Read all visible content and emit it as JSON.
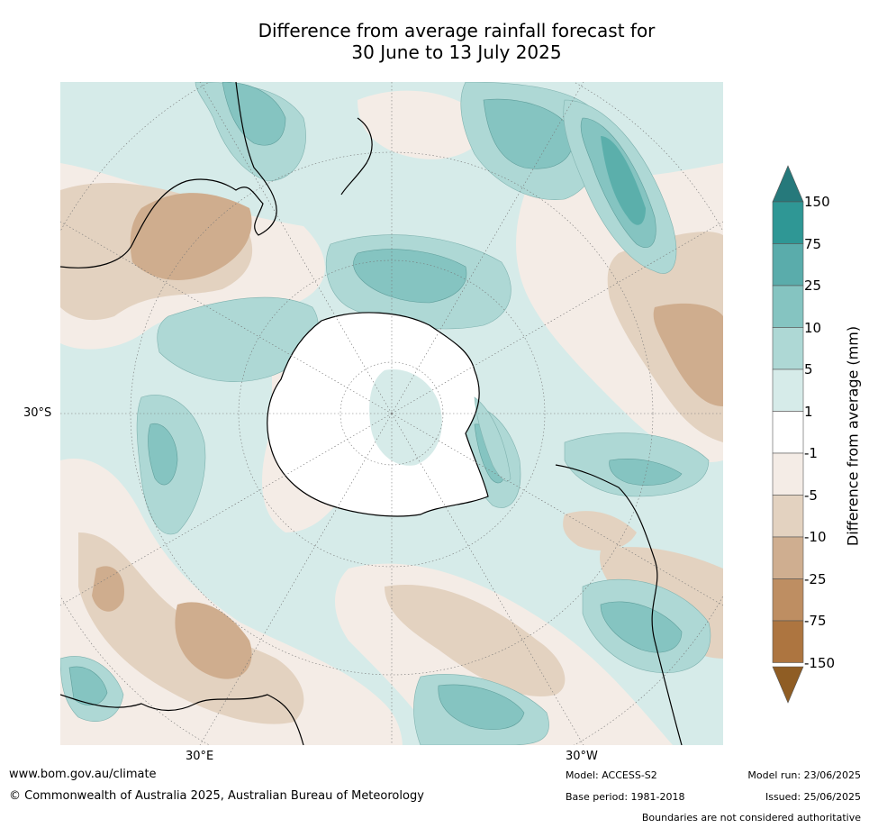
{
  "title": {
    "line1": "Difference from average rainfall forecast for",
    "line2": "30 June to 13 July 2025"
  },
  "map": {
    "projection": "south-polar stereographic",
    "lon_labels": [
      "30°E",
      "30°W"
    ],
    "lat_labels": [
      "30°S"
    ],
    "colors": {
      "land_neutral": "#ffffff",
      "dry_1": "#f4ece6",
      "dry_5": "#e3d2c0",
      "dry_10": "#cfad8e",
      "wet_1": "#d6ebe9",
      "wet_5": "#aed8d5",
      "wet_10": "#85c4c1",
      "wet_25": "#5bafab"
    }
  },
  "colorbar": {
    "label": "Difference from average (mm)",
    "ticks": [
      "150",
      "75",
      "25",
      "10",
      "5",
      "1",
      "-1",
      "-5",
      "-10",
      "-25",
      "-75",
      "-150"
    ],
    "colors": [
      "#2f9795",
      "#5aacab",
      "#85c4c1",
      "#aed8d5",
      "#d6ebe9",
      "#ffffff",
      "#f4ece6",
      "#e3d2c0",
      "#cfae90",
      "#be8e62",
      "#ad7540"
    ],
    "top_arrow_color": "#26797b",
    "bottom_arrow_color": "#8f5d24"
  },
  "footer": {
    "website": "www.bom.gov.au/climate",
    "copyright": "© Commonwealth of Australia 2025, Australian Bureau of Meteorology",
    "model": "Model: ACCESS-S2",
    "base_period": "Base period: 1981-2018",
    "model_run": "Model run: 23/06/2025",
    "issued": "Issued: 25/06/2025",
    "disclaimer": "Boundaries are not considered authoritative"
  }
}
